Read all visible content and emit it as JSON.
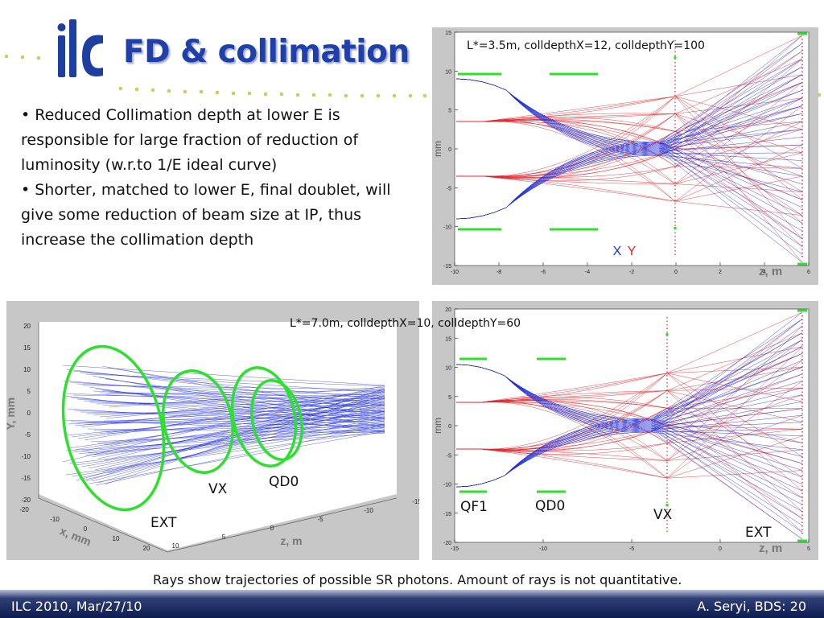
{
  "slide": {
    "title": "FD & collimation",
    "bullets": [
      "Reduced Collimation depth at lower E is responsible for large fraction of reduction of luminosity (w.r.to 1/E ideal curve)",
      "Shorter, matched to lower E, final doublet, will give some reduction of beam size at IP, thus increase the collimation depth"
    ],
    "caption": "Rays show trajectories of possible SR photons. Amount of rays is not quantitative.",
    "footer_left": "ILC 2010, Mar/27/10",
    "footer_right": "A. Seryi, BDS: 20"
  },
  "plot_top": {
    "label": "L*=3.5m, colldepthX=12, colldepthY=100",
    "ylabel": "mm",
    "xlabel": "z, m",
    "legend_x": "X",
    "legend_y": "Y",
    "yticks": [
      "15",
      "10",
      "5",
      "0",
      "-5",
      "-10",
      "-15"
    ],
    "xticks": [
      "-10",
      "-8",
      "-6",
      "-4",
      "-2",
      "0",
      "2",
      "4",
      "6"
    ],
    "colors": {
      "x": "#1d2bd6",
      "y": "#e0242b",
      "magnet": "#2ee02e"
    }
  },
  "plot_3d": {
    "ylabel": "Y, mm",
    "xlabel": "x, mm",
    "zlabel": "z, m",
    "yticks": [
      "20",
      "15",
      "10",
      "5",
      "0",
      "-5",
      "-10",
      "-15",
      "-20"
    ],
    "xticks": [
      "-20",
      "-10",
      "0",
      "10",
      "20"
    ],
    "zticks": [
      "10",
      "5",
      "0",
      "-5",
      "-10",
      "-15"
    ],
    "ann_vx": "VX",
    "ann_qd0": "QD0",
    "ann_ext": "EXT"
  },
  "plot_bottom": {
    "label": "L*=7.0m, colldepthX=10, colldepthY=60",
    "ylabel": "mm",
    "xlabel": "z, m",
    "yticks": [
      "20",
      "15",
      "10",
      "5",
      "0",
      "-5",
      "-10",
      "-15",
      "-20"
    ],
    "xticks": [
      "-15",
      "-10",
      "-5",
      "0",
      "5"
    ],
    "ann_qf1": "QF1",
    "ann_qd0": "QD0",
    "ann_vx": "VX",
    "ann_ext": "EXT"
  }
}
